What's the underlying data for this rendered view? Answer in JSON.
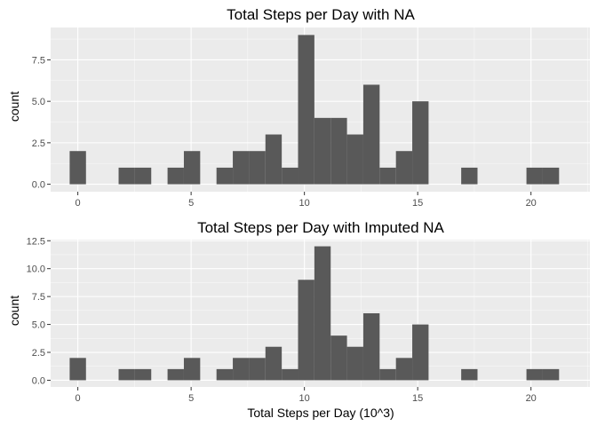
{
  "colors": {
    "panel_bg": "#ebebeb",
    "grid_major": "#ffffff",
    "bar_fill": "#595959",
    "tick_text": "#4d4d4d",
    "text": "#000000"
  },
  "chart_data": [
    {
      "type": "bar",
      "title": "Total Steps per Day with NA",
      "xlabel": "",
      "ylabel": "count",
      "xlim": [
        -1.2,
        22.6
      ],
      "ylim": [
        -0.45,
        9.45
      ],
      "xticks": [
        0,
        5,
        10,
        15,
        20
      ],
      "xtick_labels": [
        "0",
        "5",
        "10",
        "15",
        "20"
      ],
      "yticks": [
        0,
        2.5,
        5,
        7.5
      ],
      "ytick_labels": [
        "0.0",
        "2.5",
        "5.0",
        "7.5"
      ],
      "bin_width": 0.72,
      "bins": [
        {
          "x": 0.0,
          "count": 2
        },
        {
          "x": 0.72,
          "count": 0
        },
        {
          "x": 1.44,
          "count": 0
        },
        {
          "x": 2.16,
          "count": 1
        },
        {
          "x": 2.88,
          "count": 1
        },
        {
          "x": 3.6,
          "count": 0
        },
        {
          "x": 4.32,
          "count": 1
        },
        {
          "x": 5.04,
          "count": 2
        },
        {
          "x": 5.76,
          "count": 0
        },
        {
          "x": 6.48,
          "count": 1
        },
        {
          "x": 7.2,
          "count": 2
        },
        {
          "x": 7.92,
          "count": 2
        },
        {
          "x": 8.64,
          "count": 3
        },
        {
          "x": 9.36,
          "count": 1
        },
        {
          "x": 10.08,
          "count": 9
        },
        {
          "x": 10.8,
          "count": 4
        },
        {
          "x": 11.52,
          "count": 4
        },
        {
          "x": 12.24,
          "count": 3
        },
        {
          "x": 12.96,
          "count": 6
        },
        {
          "x": 13.68,
          "count": 1
        },
        {
          "x": 14.4,
          "count": 2
        },
        {
          "x": 15.12,
          "count": 5
        },
        {
          "x": 15.84,
          "count": 0
        },
        {
          "x": 16.56,
          "count": 0
        },
        {
          "x": 17.28,
          "count": 1
        },
        {
          "x": 18.0,
          "count": 0
        },
        {
          "x": 18.72,
          "count": 0
        },
        {
          "x": 19.44,
          "count": 0
        },
        {
          "x": 20.16,
          "count": 1
        },
        {
          "x": 20.88,
          "count": 1
        }
      ]
    },
    {
      "type": "bar",
      "title": "Total Steps per Day with Imputed NA",
      "xlabel": "Total Steps per Day (10^3)",
      "ylabel": "count",
      "xlim": [
        -1.2,
        22.6
      ],
      "ylim": [
        -0.6,
        12.6
      ],
      "xticks": [
        0,
        5,
        10,
        15,
        20
      ],
      "xtick_labels": [
        "0",
        "5",
        "10",
        "15",
        "20"
      ],
      "yticks": [
        0,
        2.5,
        5,
        7.5,
        10,
        12.5
      ],
      "ytick_labels": [
        "0.0",
        "2.5",
        "5.0",
        "7.5",
        "10.0",
        "12.5"
      ],
      "bin_width": 0.72,
      "bins": [
        {
          "x": 0.0,
          "count": 2
        },
        {
          "x": 0.72,
          "count": 0
        },
        {
          "x": 1.44,
          "count": 0
        },
        {
          "x": 2.16,
          "count": 1
        },
        {
          "x": 2.88,
          "count": 1
        },
        {
          "x": 3.6,
          "count": 0
        },
        {
          "x": 4.32,
          "count": 1
        },
        {
          "x": 5.04,
          "count": 2
        },
        {
          "x": 5.76,
          "count": 0
        },
        {
          "x": 6.48,
          "count": 1
        },
        {
          "x": 7.2,
          "count": 2
        },
        {
          "x": 7.92,
          "count": 2
        },
        {
          "x": 8.64,
          "count": 3
        },
        {
          "x": 9.36,
          "count": 1
        },
        {
          "x": 10.08,
          "count": 9
        },
        {
          "x": 10.8,
          "count": 12
        },
        {
          "x": 11.52,
          "count": 4
        },
        {
          "x": 12.24,
          "count": 3
        },
        {
          "x": 12.96,
          "count": 6
        },
        {
          "x": 13.68,
          "count": 1
        },
        {
          "x": 14.4,
          "count": 2
        },
        {
          "x": 15.12,
          "count": 5
        },
        {
          "x": 15.84,
          "count": 0
        },
        {
          "x": 16.56,
          "count": 0
        },
        {
          "x": 17.28,
          "count": 1
        },
        {
          "x": 18.0,
          "count": 0
        },
        {
          "x": 18.72,
          "count": 0
        },
        {
          "x": 19.44,
          "count": 0
        },
        {
          "x": 20.16,
          "count": 1
        },
        {
          "x": 20.88,
          "count": 1
        }
      ]
    }
  ]
}
